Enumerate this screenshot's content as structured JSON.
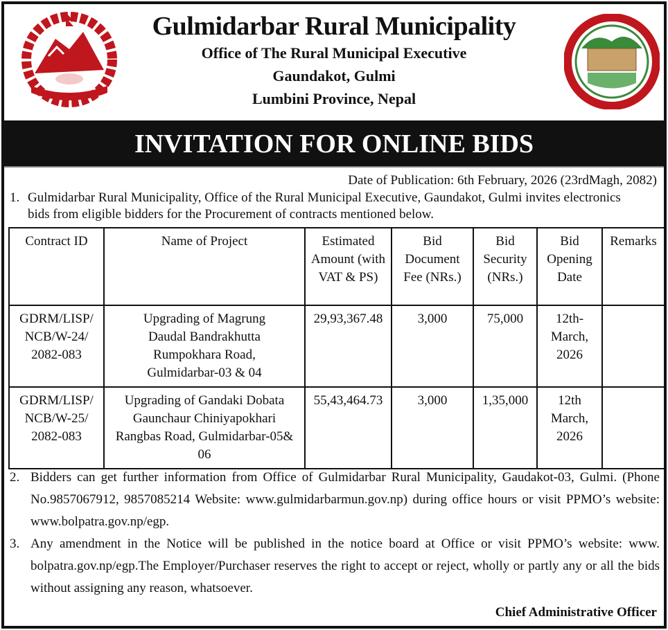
{
  "header": {
    "title": "Gulmidarbar Rural Municipality",
    "line1": "Office of The Rural Municipal Executive",
    "line2": "Gaundakot, Gulmi",
    "line3": "Lumbini Province, Nepal"
  },
  "banner": "INVITATION FOR ONLINE BIDS",
  "date": "Date of Publication: 6th February, 2026 (23rdMagh, 2082)",
  "para1": {
    "num": "1.",
    "line1": "Gulmidarbar Rural Municipality, Office of the Rural Municipal Executive, Gaundakot, Gulmi invites electronics",
    "line2": "bids from eligible bidders for the Procurement of contracts mentioned below."
  },
  "table": {
    "headers": [
      "Contract ID",
      "Name of Project",
      "Estimated Amount (with VAT & PS)",
      "Bid Document Fee (NRs.)",
      "Bid Security (NRs.)",
      "Bid Opening Date",
      "Remarks"
    ],
    "rows": [
      [
        "GDRM/LISP/ NCB/W-24/ 2082-083",
        "Upgrading of Magrung Daudal Bandrakhutta Rumpokhara Road, Gulmidarbar-03 & 04",
        "29,93,367.48",
        "3,000",
        "75,000",
        "12th-March, 2026",
        ""
      ],
      [
        "GDRM/LISP/ NCB/W-25/ 2082-083",
        "Upgrading of Gandaki Dobata Gaunchaur Chiniyapokhari Rangbas Road, Gulmidarbar-05& 06",
        "55,43,464.73",
        "3,000",
        "1,35,000",
        "12th March, 2026",
        ""
      ]
    ]
  },
  "para2": {
    "num": "2.",
    "text": "Bidders can get further information from Office of Gulmidarbar Rural Municipality, Gaudakot-03, Gulmi. (Phone No.9857067912, 9857085214 Website: www.gulmidarbarmun.gov.np) during office hours or visit PPMO’s website: www.bolpatra.gov.np/egp."
  },
  "para3": {
    "num": "3.",
    "text": "Any amendment in the Notice will be published in the notice board at Office or visit PPMO’s website: www. bolpatra.gov.np/egp.The Employer/Purchaser reserves the right to accept or reject, wholly or partly any or all the bids without assigning any reason, whatsoever."
  },
  "signature": "Chief Administrative Officer",
  "colors": {
    "emblem_red": "#c0161d",
    "logo_green": "#3a8a3a"
  }
}
